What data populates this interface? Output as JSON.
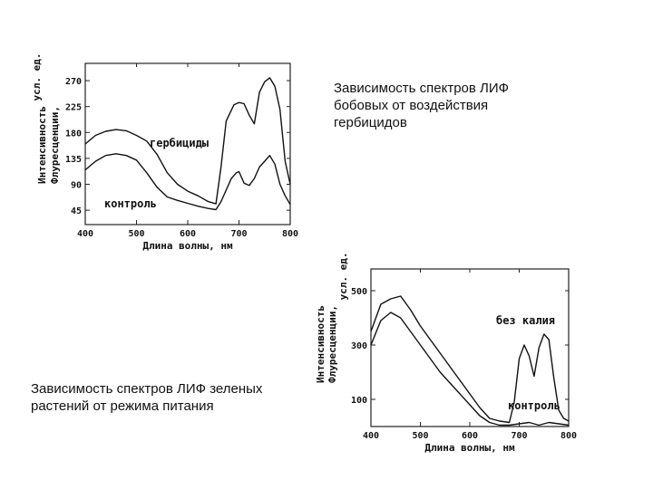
{
  "captions": {
    "chart1": "Зависимость спектров ЛИФ бобовых от воздействия гербицидов",
    "chart2": "Зависимость спектров ЛИФ зеленых растений от режима питания"
  },
  "chart_data": [
    {
      "type": "line",
      "xlabel": "Длина волны,  нм",
      "ylabel_line1": "усл. ед.",
      "ylabel_line2": "Флуресценции,",
      "ylabel_line3": "Интенсивность",
      "xlim": [
        400,
        800
      ],
      "ylim": [
        20,
        300
      ],
      "x_ticks": [
        "400",
        "500",
        "600",
        "700",
        "800"
      ],
      "y_ticks": [
        {
          "label": "270",
          "value": 270
        },
        {
          "label": "225",
          "value": 225
        },
        {
          "label": "180",
          "value": 180
        },
        {
          "label": "135",
          "value": 135
        },
        {
          "label": "90",
          "value": 90
        },
        {
          "label": "45",
          "value": 45
        }
      ],
      "series": [
        {
          "name": "гербициды",
          "x": [
            400,
            420,
            440,
            460,
            480,
            500,
            520,
            540,
            560,
            580,
            600,
            620,
            640,
            655,
            665,
            675,
            690,
            700,
            710,
            720,
            730,
            740,
            750,
            760,
            770,
            780,
            790,
            800
          ],
          "y": [
            160,
            175,
            182,
            185,
            183,
            175,
            165,
            142,
            110,
            90,
            78,
            70,
            60,
            56,
            120,
            200,
            228,
            232,
            230,
            210,
            195,
            250,
            268,
            275,
            260,
            220,
            130,
            90
          ]
        },
        {
          "name": "контроль",
          "x": [
            400,
            420,
            440,
            460,
            480,
            500,
            520,
            540,
            560,
            580,
            600,
            620,
            640,
            655,
            665,
            675,
            685,
            695,
            700,
            710,
            720,
            730,
            740,
            750,
            760,
            770,
            780,
            790,
            800
          ],
          "y": [
            115,
            130,
            140,
            143,
            140,
            132,
            110,
            85,
            68,
            62,
            57,
            52,
            48,
            46,
            60,
            80,
            100,
            110,
            112,
            92,
            88,
            100,
            120,
            130,
            140,
            125,
            90,
            70,
            55
          ]
        }
      ]
    },
    {
      "type": "line",
      "xlabel": "Длина волны,  нм",
      "ylabel_line1": "усл. ед.",
      "ylabel_line2": "Флуресценции,",
      "ylabel_line3": "Интенсивность",
      "xlim": [
        400,
        800
      ],
      "ylim": [
        0,
        580
      ],
      "x_ticks": [
        "400",
        "500",
        "600",
        "700",
        "800"
      ],
      "y_ticks": [
        {
          "label": "500",
          "value": 500
        },
        {
          "label": "300",
          "value": 300
        },
        {
          "label": "100",
          "value": 100
        }
      ],
      "series": [
        {
          "name": "без калия",
          "x": [
            400,
            420,
            440,
            460,
            480,
            500,
            520,
            540,
            560,
            580,
            600,
            620,
            640,
            660,
            680,
            690,
            700,
            710,
            720,
            730,
            740,
            750,
            760,
            770,
            780,
            790,
            800
          ],
          "y": [
            350,
            450,
            470,
            480,
            430,
            370,
            320,
            270,
            220,
            170,
            120,
            70,
            30,
            20,
            15,
            90,
            250,
            300,
            260,
            185,
            290,
            340,
            320,
            180,
            60,
            30,
            20
          ]
        },
        {
          "name": "контроль",
          "x": [
            400,
            420,
            440,
            460,
            480,
            500,
            520,
            540,
            560,
            580,
            600,
            620,
            640,
            660,
            680,
            700,
            720,
            740,
            760,
            780,
            800
          ],
          "y": [
            300,
            390,
            420,
            400,
            350,
            300,
            250,
            200,
            160,
            120,
            80,
            40,
            15,
            5,
            5,
            10,
            15,
            5,
            15,
            10,
            5
          ]
        }
      ]
    }
  ]
}
